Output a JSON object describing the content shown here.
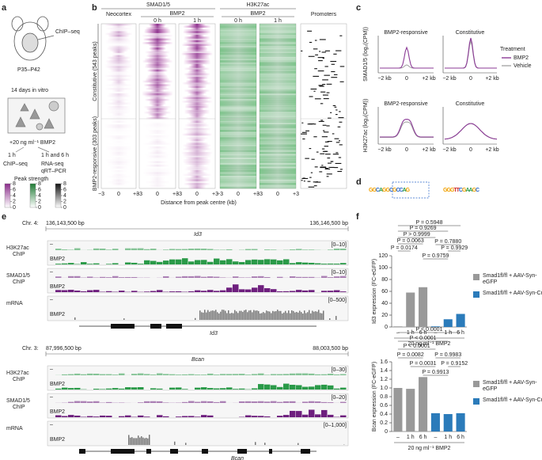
{
  "figure_labels": [
    "a",
    "b",
    "c",
    "d",
    "e",
    "f"
  ],
  "a": {
    "texts": [
      "ChIP–seq",
      "P35–P42",
      "14 days in vitro",
      "+20 ng ml⁻¹ BMP2",
      "1 h",
      "1 h and 6 h",
      "ChIP–seq",
      "RNA-seq",
      "qRT–PCR"
    ],
    "peak_strength": {
      "title": "Peak strength",
      "lim": [
        0,
        8
      ],
      "ticks": [
        8,
        6,
        4,
        2,
        0
      ]
    }
  },
  "b": {
    "groups": [
      "SMAD1/5",
      "H3K27ac"
    ],
    "columns": [
      "Neocortex",
      "BMP2",
      "BMP2",
      "Promoters"
    ],
    "timepoints": [
      "0 h",
      "1 h"
    ],
    "row_groups": [
      "Constitutive (543 peaks)",
      "BMP2-responsive (303 peaks)"
    ],
    "x_ticks": [
      "−3",
      "0",
      "+3"
    ],
    "xlabel": "Distance from peak centre (kb)"
  },
  "c": {
    "titles": [
      "BMP2-responsive",
      "Constitutive"
    ],
    "ylabels": [
      "SMAD1/5 (log₂(CPM))",
      "H3K27ac (log₂(CPM))"
    ],
    "x_ticks": [
      "−2 kb",
      "0",
      "+2 kb"
    ],
    "legend": {
      "title": "Treatment",
      "entries": [
        {
          "name": "BMP2",
          "color": "#8b3a96"
        },
        {
          "name": "Vehicle",
          "color": "#a8a8a8"
        }
      ]
    }
  },
  "d": {
    "motifs": [
      "GGCAGGCGCCAG",
      "GGGTTCGAAGC"
    ]
  },
  "e": {
    "loci": [
      {
        "chr": "Chr. 4:",
        "start": "136,143,500 bp",
        "gene": "Id3",
        "end": "136,146,500 bp",
        "ranges": [
          "[0–10]",
          "[0–10]",
          "[0–500]"
        ]
      },
      {
        "chr": "Chr. 3:",
        "start": "87,996,500 bp",
        "gene": "Bcan",
        "end": "88,003,500 bp",
        "ranges": [
          "[0–30]",
          "[0–20]",
          "[0–1,000]"
        ]
      }
    ],
    "tracks": [
      {
        "name": "H3K27ac",
        "sub": "ChIP",
        "color": "#2a9a48"
      },
      {
        "name": "SMAD1/5",
        "sub": "ChIP",
        "color": "#6e1f7e"
      },
      {
        "name": "mRNA",
        "color": "#777777"
      }
    ],
    "condition": "BMP2",
    "dash": "–"
  },
  "chart_data": [
    {
      "type": "bar",
      "ylabel": "Id3 expression (FC-eGFP)",
      "xlabel": "20 ng ml⁻¹ BMP2",
      "categories": [
        "–",
        "1 h",
        "6 h",
        "–",
        "1 h",
        "6 h"
      ],
      "series": [
        {
          "name": "Smad1fl/fl + AAV-Syn-eGFP",
          "color": "#999999",
          "values": [
            1,
            58,
            67,
            null,
            null,
            null
          ]
        },
        {
          "name": "Smad1fl/fl + AAV-Syn-Cre",
          "color": "#2b7bba",
          "values": [
            null,
            null,
            null,
            1,
            13,
            22
          ]
        }
      ],
      "ylim": [
        0,
        120
      ],
      "yticks": [
        0,
        20,
        40,
        60,
        80,
        100,
        120
      ],
      "annotations": [
        "P = 0.5948",
        "P = 0.9269",
        "P > 0.9999",
        "P = 0.0063",
        "P = 0.0174",
        "P = 0.7880",
        "P = 0.9929",
        "P = 0.9759"
      ]
    },
    {
      "type": "bar",
      "ylabel": "Bcan expression (FC-eGFP)",
      "xlabel": "20 ng ml⁻¹ BMP2",
      "categories": [
        "–",
        "1 h",
        "6 h",
        "–",
        "1 h",
        "6 h"
      ],
      "series": [
        {
          "name": "Smad1fl/fl + AAV-Syn-eGFP",
          "color": "#999999",
          "values": [
            1,
            0.98,
            1.25,
            null,
            null,
            null
          ]
        },
        {
          "name": "Smad1fl/fl + AAV-Syn-Cre",
          "color": "#2b7bba",
          "values": [
            null,
            null,
            null,
            0.42,
            0.4,
            0.42
          ]
        }
      ],
      "ylim": [
        0,
        1.6
      ],
      "yticks": [
        0,
        0.2,
        0.4,
        0.6,
        0.8,
        {
          "value": 1,
          "label": "1.0"
        },
        1.2,
        1.4,
        1.6
      ],
      "annotations": [
        "P < 0.0001",
        "P < 0.0001",
        "P < 0.0001",
        "P = 0.0082",
        "P = 0.9983",
        "P = 0.0031",
        "P = 0.9152",
        "P = 0.9913"
      ]
    }
  ]
}
